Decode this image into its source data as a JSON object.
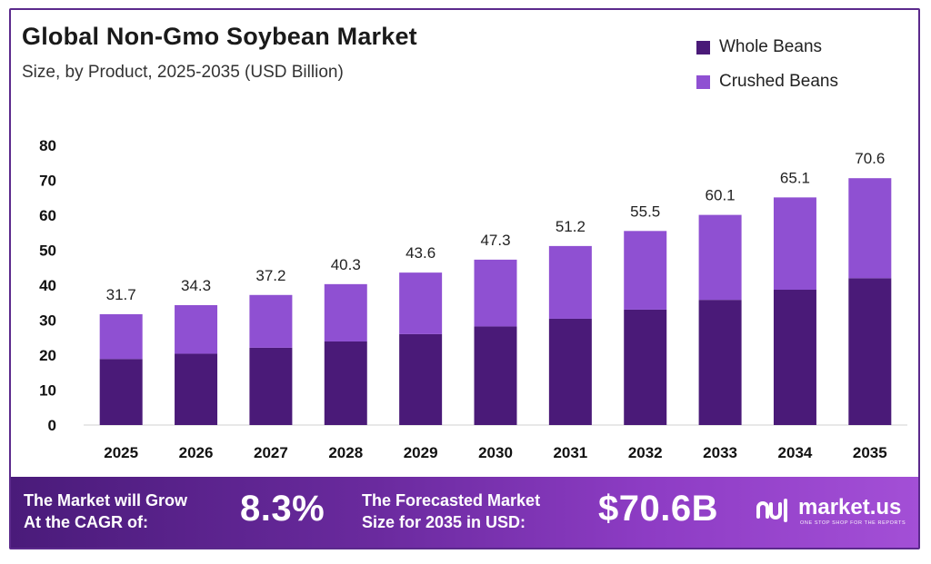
{
  "header": {
    "title": "Global Non-Gmo Soybean Market",
    "subtitle": "Size, by Product, 2025-2035 (USD Billion)"
  },
  "legend": {
    "items": [
      {
        "label": "Whole Beans",
        "color": "#4a1a78"
      },
      {
        "label": "Crushed Beans",
        "color": "#8f50d2"
      }
    ]
  },
  "chart_data": {
    "type": "bar",
    "stacked": true,
    "title": "Global Non-Gmo Soybean Market",
    "subtitle": "Size, by Product, 2025-2035 (USD Billion)",
    "xlabel": "",
    "ylabel": "",
    "ylim": [
      0,
      80
    ],
    "yticks": [
      0,
      10,
      20,
      30,
      40,
      50,
      60,
      70,
      80
    ],
    "grid": false,
    "legend_position": "top-right",
    "categories": [
      "2025",
      "2026",
      "2027",
      "2028",
      "2029",
      "2030",
      "2031",
      "2032",
      "2033",
      "2034",
      "2035"
    ],
    "series": [
      {
        "name": "Whole Beans",
        "color": "#4a1a78",
        "values": [
          18.9,
          20.4,
          22.1,
          23.9,
          26.0,
          28.2,
          30.4,
          33.0,
          35.8,
          38.7,
          42.0
        ]
      },
      {
        "name": "Crushed Beans",
        "color": "#8f50d2",
        "values": [
          12.8,
          13.9,
          15.1,
          16.4,
          17.6,
          19.1,
          20.8,
          22.5,
          24.3,
          26.4,
          28.6
        ]
      }
    ],
    "totals": [
      "31.7",
      "34.3",
      "37.2",
      "40.3",
      "43.6",
      "47.3",
      "51.2",
      "55.5",
      "60.1",
      "65.1",
      "70.6"
    ]
  },
  "footer": {
    "cagr_label_line1": "The Market will Grow",
    "cagr_label_line2": "At the CAGR of:",
    "cagr_value": "8.3%",
    "forecast_label_line1": "The Forecasted Market",
    "forecast_label_line2": "Size for 2035 in USD:",
    "forecast_value": "$70.6B",
    "brand_name": "market.us",
    "brand_tagline": "ONE STOP SHOP FOR THE REPORTS"
  }
}
